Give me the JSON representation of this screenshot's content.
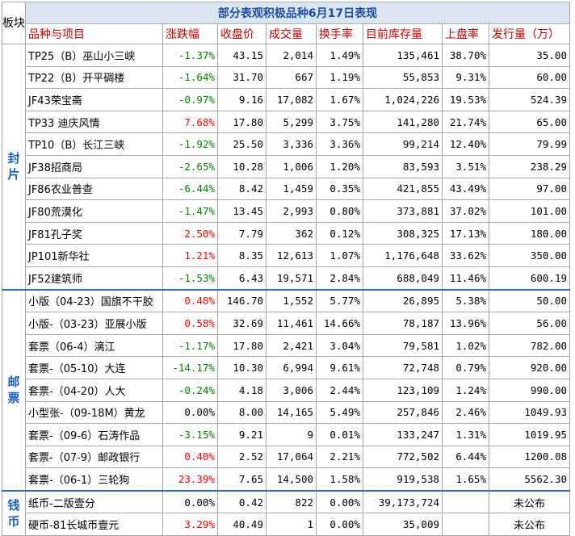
{
  "title": "部分表观积极品种6月17日表现",
  "corner": "板块",
  "headers": [
    "品种与项目",
    "涨跌幅",
    "收盘价",
    "成交量",
    "换手率",
    "目前库存量",
    "上盘率",
    "发行量（万）"
  ],
  "sections": [
    {
      "label": "封片",
      "rows": [
        {
          "name": "TP25（B）巫山小三峡",
          "change": "-1.37%",
          "dir": "down",
          "close": "43.15",
          "volume": "2,014",
          "turnover": "1.49%",
          "stock": "135,461",
          "rate": "38.70%",
          "issue": "35.00"
        },
        {
          "name": "TP22（B）开平碉楼",
          "change": "-1.64%",
          "dir": "down",
          "close": "31.70",
          "volume": "667",
          "turnover": "1.19%",
          "stock": "55,853",
          "rate": "9.31%",
          "issue": "60.00"
        },
        {
          "name": "JF43荣宝斋",
          "change": "-0.97%",
          "dir": "down",
          "close": "9.16",
          "volume": "17,082",
          "turnover": "1.67%",
          "stock": "1,024,226",
          "rate": "19.53%",
          "issue": "524.39"
        },
        {
          "name": "TP33 迪庆风情",
          "change": "7.68%",
          "dir": "up",
          "close": "17.80",
          "volume": "5,299",
          "turnover": "3.75%",
          "stock": "141,280",
          "rate": "21.74%",
          "issue": "65.00"
        },
        {
          "name": "TP10（B）长江三峡",
          "change": "-1.92%",
          "dir": "down",
          "close": "25.50",
          "volume": "3,336",
          "turnover": "3.36%",
          "stock": "99,214",
          "rate": "12.40%",
          "issue": "79.99"
        },
        {
          "name": "JF38招商局",
          "change": "-2.65%",
          "dir": "down",
          "close": "10.28",
          "volume": "1,006",
          "turnover": "1.20%",
          "stock": "83,593",
          "rate": "3.51%",
          "issue": "238.29"
        },
        {
          "name": "JF86农业普查",
          "change": "-6.44%",
          "dir": "down",
          "close": "8.42",
          "volume": "1,459",
          "turnover": "0.35%",
          "stock": "421,855",
          "rate": "43.49%",
          "issue": "97.00"
        },
        {
          "name": "JF80荒漠化",
          "change": "-1.47%",
          "dir": "down",
          "close": "13.45",
          "volume": "2,993",
          "turnover": "0.80%",
          "stock": "373,881",
          "rate": "37.02%",
          "issue": "101.00"
        },
        {
          "name": "JF81孔子奖",
          "change": "2.50%",
          "dir": "up",
          "close": "7.79",
          "volume": "362",
          "turnover": "0.12%",
          "stock": "308,325",
          "rate": "17.13%",
          "issue": "180.00"
        },
        {
          "name": "JP101新华社",
          "change": "1.21%",
          "dir": "up",
          "close": "8.35",
          "volume": "12,613",
          "turnover": "1.07%",
          "stock": "1,176,648",
          "rate": "33.62%",
          "issue": "350.00"
        },
        {
          "name": "JF52建筑师",
          "change": "-1.53%",
          "dir": "down",
          "close": "6.43",
          "volume": "19,571",
          "turnover": "2.84%",
          "stock": "688,049",
          "rate": "11.46%",
          "issue": "600.19"
        }
      ]
    },
    {
      "label": "邮票",
      "rows": [
        {
          "name": "小版（04-23）国旗不干胶",
          "change": "0.48%",
          "dir": "up",
          "close": "146.70",
          "volume": "1,552",
          "turnover": "5.77%",
          "stock": "26,895",
          "rate": "5.38%",
          "issue": "50.00"
        },
        {
          "name": "小版-（03-23）亚展小版",
          "change": "0.58%",
          "dir": "up",
          "close": "32.69",
          "volume": "11,461",
          "turnover": "14.66%",
          "stock": "78,187",
          "rate": "13.96%",
          "issue": "56.00"
        },
        {
          "name": "套票（06-4）漓江",
          "change": "-1.17%",
          "dir": "down",
          "close": "17.80",
          "volume": "2,421",
          "turnover": "3.04%",
          "stock": "79,581",
          "rate": "1.02%",
          "issue": "782.00"
        },
        {
          "name": "套票-（05-10）大连",
          "change": "-14.17%",
          "dir": "down",
          "close": "10.30",
          "volume": "6,994",
          "turnover": "9.61%",
          "stock": "72,748",
          "rate": "0.79%",
          "issue": "920.00"
        },
        {
          "name": "套票-（04-20）人大",
          "change": "-0.24%",
          "dir": "down",
          "close": "4.18",
          "volume": "3,006",
          "turnover": "2.44%",
          "stock": "123,109",
          "rate": "1.24%",
          "issue": "990.00"
        },
        {
          "name": "小型张-（09-18M）黄龙",
          "change": "0.00%",
          "dir": "flat",
          "close": "8.00",
          "volume": "14,165",
          "turnover": "5.49%",
          "stock": "257,846",
          "rate": "2.46%",
          "issue": "1049.93"
        },
        {
          "name": "套票-（09-6）石涛作品",
          "change": "-3.15%",
          "dir": "down",
          "close": "9.21",
          "volume": "9",
          "turnover": "0.01%",
          "stock": "133,247",
          "rate": "1.31%",
          "issue": "1019.95"
        },
        {
          "name": "套票-（07-9）邮政银行",
          "change": "0.40%",
          "dir": "up",
          "close": "2.52",
          "volume": "17,064",
          "turnover": "2.21%",
          "stock": "772,502",
          "rate": "6.44%",
          "issue": "1200.08"
        },
        {
          "name": "套票-（06-1）三轮狗",
          "change": "23.39%",
          "dir": "up",
          "close": "7.65",
          "volume": "14,500",
          "turnover": "1.58%",
          "stock": "919,538",
          "rate": "1.65%",
          "issue": "5562.30"
        }
      ]
    },
    {
      "label": "钱币",
      "rows": [
        {
          "name": "纸币-二版壹分",
          "change": "0.00%",
          "dir": "flat",
          "close": "0.42",
          "volume": "822",
          "turnover": "0.00%",
          "stock": "39,173,724",
          "rate": "",
          "issue": "未公布"
        },
        {
          "name": "硬币-81长城币壹元",
          "change": "3.29%",
          "dir": "up",
          "close": "40.49",
          "volume": "1",
          "turnover": "0.00%",
          "stock": "35,009",
          "rate": "",
          "issue": "未公布"
        }
      ]
    }
  ],
  "colors": {
    "up": "#ff0000",
    "down": "#008000",
    "flat": "#000000",
    "header_text": "#c00000",
    "title_bg": "#dbe5f1",
    "section_label": "#1f5fbf"
  }
}
